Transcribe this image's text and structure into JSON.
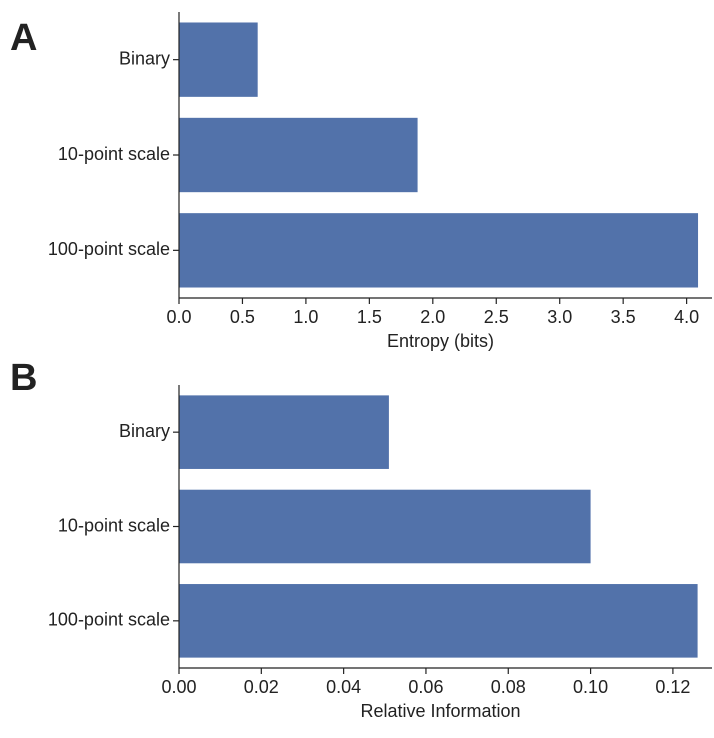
{
  "chart_data": [
    {
      "type": "bar",
      "panel_label": "A",
      "orientation": "horizontal",
      "xlabel": "Entropy (bits)",
      "categories": [
        "Binary",
        "10-point scale",
        "100-point scale"
      ],
      "values": [
        0.62,
        1.88,
        4.09
      ],
      "color": "#5272aa",
      "xlim": [
        0,
        4.2
      ],
      "xticks": [
        {
          "value": 0,
          "label": "0.0"
        },
        0.5,
        {
          "value": 1,
          "label": "1.0"
        },
        1.5,
        {
          "value": 2,
          "label": "2.0"
        },
        2.5,
        {
          "value": 3,
          "label": "3.0"
        },
        3.5,
        {
          "value": 4,
          "label": "4.0"
        }
      ]
    },
    {
      "type": "bar",
      "panel_label": "B",
      "orientation": "horizontal",
      "xlabel": "Relative Information",
      "categories": [
        "Binary",
        "10-point scale",
        "100-point scale"
      ],
      "values": [
        0.051,
        0.1,
        0.126
      ],
      "color": "#5272aa",
      "xlim": [
        0,
        0.1295
      ],
      "xticks": [
        {
          "value": 0,
          "label": "0.00"
        },
        0.02,
        0.04,
        0.06,
        0.08,
        {
          "value": 0.1,
          "label": "0.10"
        },
        0.12
      ]
    }
  ]
}
